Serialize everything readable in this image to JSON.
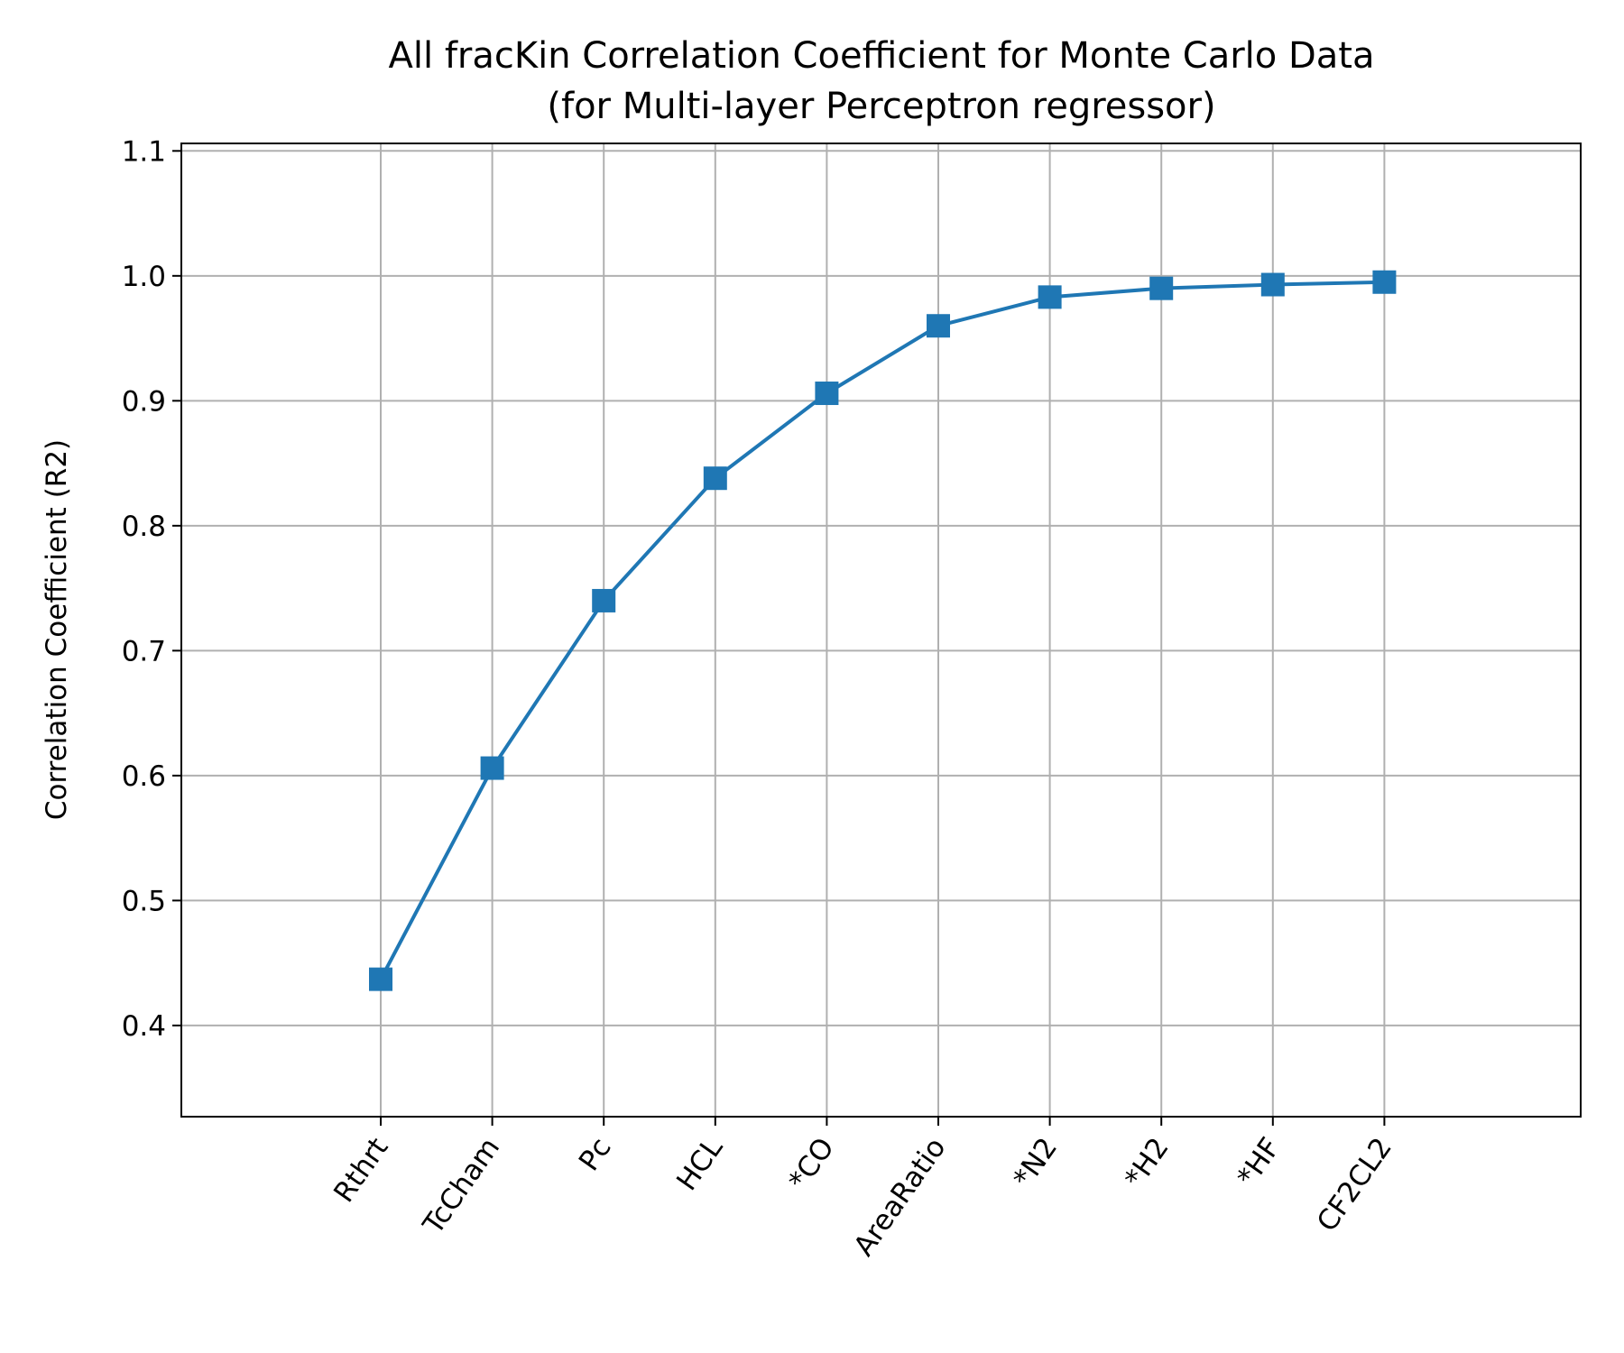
{
  "chart_data": {
    "type": "line",
    "title": "All fracKin Correlation Coefficient for Monte Carlo Data",
    "subtitle": "(for Multi-layer Perceptron regressor)",
    "xlabel": "",
    "ylabel": "Correlation Coefficient (R2)",
    "categories": [
      "Rthrt",
      "TcCham",
      "Pc",
      "HCL",
      "*CO",
      "AreaRatio",
      "*N2",
      "*H2",
      "*HF",
      "CF2CL2"
    ],
    "series": [
      {
        "values": [
          0.437,
          0.606,
          0.74,
          0.838,
          0.906,
          0.96,
          0.983,
          0.99,
          0.993,
          0.995
        ],
        "color": "#1f77b4",
        "marker": "square"
      }
    ],
    "ylim": [
      0.327,
      1.106
    ],
    "yticks": [
      0.4,
      0.5,
      0.6,
      0.7,
      0.8,
      0.9,
      1.0,
      1.1
    ],
    "ytick_labels": [
      "0.4",
      "0.5",
      "0.6",
      "0.7",
      "0.8",
      "0.9",
      "1.0",
      "1.1"
    ],
    "grid": true,
    "xtick_rotation": "45 degrees"
  }
}
